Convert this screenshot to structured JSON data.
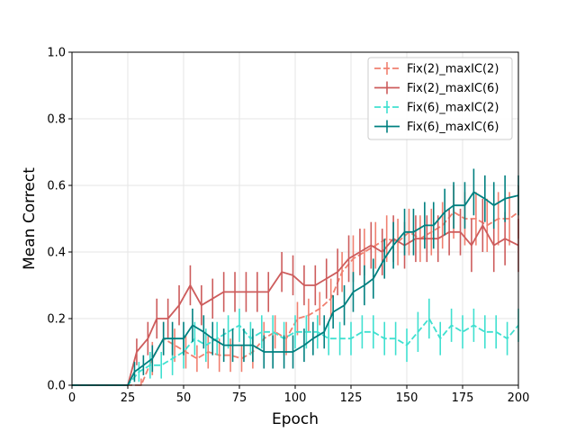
{
  "chart_data": {
    "type": "line",
    "title": "",
    "xlabel": "Epoch",
    "ylabel": "Mean Correct",
    "xlim": [
      0,
      200
    ],
    "ylim": [
      0,
      1.0
    ],
    "xticks": [
      0,
      25,
      50,
      75,
      100,
      125,
      150,
      175,
      200
    ],
    "yticks": [
      0.0,
      0.2,
      0.4,
      0.6,
      0.8,
      1.0
    ],
    "xtick_labels": [
      "0",
      "25",
      "50",
      "75",
      "100",
      "125",
      "150",
      "175",
      "200"
    ],
    "ytick_labels": [
      "0.0",
      "0.2",
      "0.4",
      "0.6",
      "0.8",
      "1.0"
    ],
    "grid": true,
    "legend_position": "top-right",
    "series": [
      {
        "name": "Fix(2)_maxIC(2)",
        "color": "#f08070",
        "dash": "dashed",
        "x": [
          0,
          5,
          10,
          15,
          20,
          25,
          31,
          36,
          41,
          46,
          51,
          56,
          61,
          66,
          71,
          76,
          81,
          86,
          91,
          96,
          101,
          106,
          111,
          116,
          121,
          126,
          131,
          136,
          141,
          146,
          151,
          156,
          161,
          166,
          171,
          176,
          181,
          186,
          191,
          196,
          200
        ],
        "y": [
          0,
          0,
          0,
          0,
          0,
          0,
          0.0,
          0.08,
          0.14,
          0.12,
          0.1,
          0.08,
          0.1,
          0.09,
          0.09,
          0.08,
          0.1,
          0.14,
          0.16,
          0.14,
          0.2,
          0.21,
          0.23,
          0.26,
          0.34,
          0.38,
          0.4,
          0.42,
          0.44,
          0.43,
          0.46,
          0.44,
          0.46,
          0.48,
          0.52,
          0.5,
          0.5,
          0.48,
          0.5,
          0.5,
          0.52
        ],
        "err": [
          0,
          0,
          0,
          0,
          0,
          0,
          0.02,
          0.05,
          0.05,
          0.05,
          0.05,
          0.04,
          0.05,
          0.05,
          0.05,
          0.04,
          0.05,
          0.05,
          0.05,
          0.05,
          0.05,
          0.05,
          0.05,
          0.06,
          0.06,
          0.07,
          0.07,
          0.07,
          0.07,
          0.07,
          0.07,
          0.07,
          0.07,
          0.07,
          0.08,
          0.08,
          0.08,
          0.08,
          0.08,
          0.08,
          0.08
        ]
      },
      {
        "name": "Fix(2)_maxIC(6)",
        "color": "#cd5c5c",
        "dash": "solid",
        "x": [
          0,
          5,
          10,
          15,
          20,
          25,
          29,
          34,
          38,
          43,
          48,
          53,
          58,
          63,
          68,
          73,
          78,
          83,
          88,
          94,
          99,
          104,
          109,
          114,
          119,
          124,
          129,
          134,
          139,
          144,
          149,
          154,
          159,
          164,
          169,
          174,
          179,
          184,
          189,
          194,
          200
        ],
        "y": [
          0,
          0,
          0,
          0,
          0,
          0,
          0.1,
          0.14,
          0.2,
          0.2,
          0.24,
          0.3,
          0.24,
          0.26,
          0.28,
          0.28,
          0.28,
          0.28,
          0.28,
          0.34,
          0.33,
          0.3,
          0.3,
          0.32,
          0.34,
          0.38,
          0.4,
          0.42,
          0.4,
          0.44,
          0.42,
          0.44,
          0.44,
          0.44,
          0.46,
          0.46,
          0.42,
          0.48,
          0.42,
          0.44,
          0.42
        ],
        "err": [
          0,
          0,
          0,
          0,
          0,
          0,
          0.04,
          0.05,
          0.06,
          0.06,
          0.06,
          0.06,
          0.06,
          0.06,
          0.06,
          0.06,
          0.06,
          0.06,
          0.06,
          0.06,
          0.06,
          0.06,
          0.06,
          0.06,
          0.07,
          0.07,
          0.07,
          0.07,
          0.07,
          0.07,
          0.07,
          0.07,
          0.07,
          0.07,
          0.07,
          0.07,
          0.08,
          0.08,
          0.08,
          0.08,
          0.08
        ]
      },
      {
        "name": "Fix(6)_maxIC(2)",
        "color": "#40e0d0",
        "dash": "dashed",
        "x": [
          0,
          5,
          10,
          15,
          20,
          25,
          30,
          35,
          40,
          45,
          50,
          55,
          60,
          65,
          70,
          75,
          80,
          85,
          90,
          95,
          100,
          105,
          110,
          115,
          120,
          125,
          130,
          135,
          140,
          145,
          150,
          155,
          160,
          165,
          170,
          175,
          180,
          185,
          190,
          195,
          200
        ],
        "y": [
          0,
          0,
          0,
          0,
          0,
          0,
          0.04,
          0.06,
          0.06,
          0.08,
          0.1,
          0.14,
          0.12,
          0.14,
          0.16,
          0.18,
          0.14,
          0.16,
          0.16,
          0.14,
          0.16,
          0.16,
          0.16,
          0.14,
          0.14,
          0.14,
          0.16,
          0.16,
          0.14,
          0.14,
          0.12,
          0.16,
          0.2,
          0.14,
          0.18,
          0.16,
          0.18,
          0.16,
          0.16,
          0.14,
          0.18
        ],
        "err": [
          0,
          0,
          0,
          0,
          0,
          0,
          0.03,
          0.04,
          0.04,
          0.05,
          0.05,
          0.05,
          0.05,
          0.05,
          0.05,
          0.05,
          0.05,
          0.05,
          0.05,
          0.05,
          0.05,
          0.05,
          0.05,
          0.05,
          0.05,
          0.05,
          0.05,
          0.05,
          0.05,
          0.05,
          0.05,
          0.06,
          0.06,
          0.05,
          0.05,
          0.05,
          0.05,
          0.05,
          0.05,
          0.05,
          0.05
        ]
      },
      {
        "name": "Fix(6)_maxIC(6)",
        "color": "#008080",
        "dash": "solid",
        "x": [
          0,
          5,
          10,
          15,
          20,
          25,
          28,
          32,
          36,
          41,
          45,
          50,
          54,
          59,
          63,
          68,
          72,
          77,
          81,
          86,
          90,
          95,
          99,
          104,
          108,
          113,
          117,
          122,
          126,
          131,
          135,
          140,
          144,
          149,
          153,
          158,
          162,
          167,
          171,
          176,
          180,
          185,
          189,
          194,
          200
        ],
        "y": [
          0,
          0,
          0,
          0,
          0,
          0,
          0.04,
          0.06,
          0.08,
          0.14,
          0.14,
          0.14,
          0.18,
          0.16,
          0.14,
          0.12,
          0.12,
          0.12,
          0.12,
          0.1,
          0.1,
          0.1,
          0.1,
          0.12,
          0.14,
          0.16,
          0.22,
          0.24,
          0.28,
          0.3,
          0.32,
          0.38,
          0.42,
          0.46,
          0.46,
          0.48,
          0.48,
          0.52,
          0.54,
          0.54,
          0.58,
          0.56,
          0.54,
          0.56,
          0.57
        ],
        "err": [
          0,
          0,
          0,
          0,
          0,
          0,
          0.03,
          0.03,
          0.04,
          0.05,
          0.05,
          0.05,
          0.05,
          0.05,
          0.05,
          0.05,
          0.05,
          0.05,
          0.05,
          0.05,
          0.05,
          0.05,
          0.05,
          0.05,
          0.05,
          0.05,
          0.05,
          0.06,
          0.06,
          0.06,
          0.06,
          0.06,
          0.07,
          0.07,
          0.07,
          0.07,
          0.07,
          0.07,
          0.07,
          0.07,
          0.07,
          0.07,
          0.07,
          0.07,
          0.06
        ]
      }
    ]
  }
}
